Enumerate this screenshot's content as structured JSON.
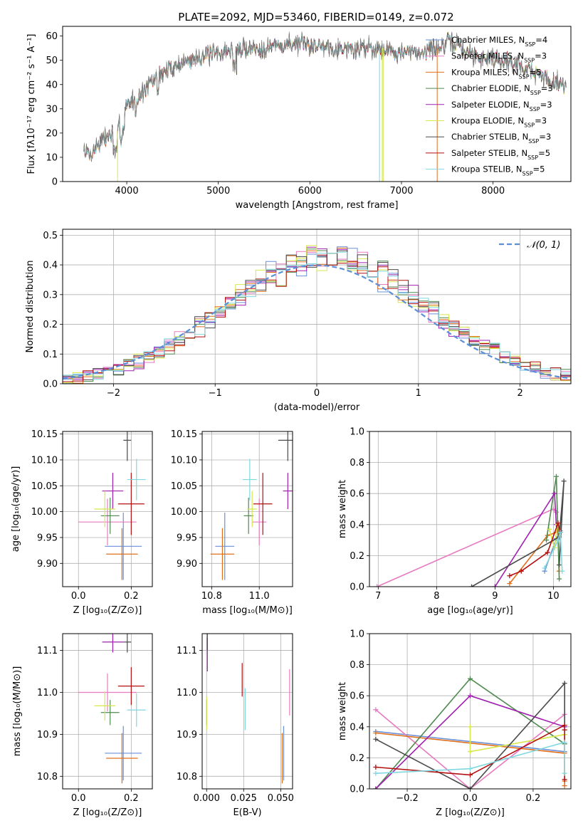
{
  "title": "PLATE=2092, MJD=53460, FIBERID=0149, z=0.072",
  "models": [
    {
      "name": "Chabrier MILES",
      "nssp": "4",
      "color": "#6a8fd8"
    },
    {
      "name": "Salpeter MILES",
      "nssp": "3",
      "color": "#e87ac1"
    },
    {
      "name": "Kroupa MILES",
      "nssp": "5",
      "color": "#e06f1a"
    },
    {
      "name": "Chabrier ELODIE",
      "nssp": "3",
      "color": "#4f8a4f"
    },
    {
      "name": "Salpeter ELODIE",
      "nssp": "3",
      "color": "#a020b0"
    },
    {
      "name": "Kroupa ELODIE",
      "nssp": "3",
      "color": "#d6e84a"
    },
    {
      "name": "Chabrier STELIB",
      "nssp": "3",
      "color": "#4a4a4a"
    },
    {
      "name": "Salpeter STELIB",
      "nssp": "5",
      "color": "#b30f0f"
    },
    {
      "name": "Kroupa STELIB",
      "nssp": "5",
      "color": "#7fd8e0"
    }
  ],
  "chart_data": [
    {
      "type": "line",
      "id": "spectrum",
      "xlabel": "wavelength [Angstrom, rest frame]",
      "ylabel": "Flux [fλ10⁻¹⁷ erg cm⁻² s⁻¹ A⁻¹]",
      "xlim": [
        3300,
        8850
      ],
      "ylim": [
        0,
        64
      ],
      "xticks": [
        4000,
        5000,
        6000,
        7000,
        8000
      ],
      "yticks": [
        0,
        10,
        20,
        30,
        40,
        50,
        60
      ],
      "legend": "top-right",
      "continuum": [
        [
          3530,
          13
        ],
        [
          3600,
          11
        ],
        [
          3700,
          16
        ],
        [
          3800,
          19
        ],
        [
          3900,
          21
        ],
        [
          4000,
          32
        ],
        [
          4100,
          34
        ],
        [
          4200,
          38
        ],
        [
          4300,
          42
        ],
        [
          4400,
          45
        ],
        [
          4500,
          47
        ],
        [
          4600,
          49
        ],
        [
          4700,
          50
        ],
        [
          4800,
          52
        ],
        [
          4900,
          52
        ],
        [
          5000,
          53
        ],
        [
          5100,
          54
        ],
        [
          5200,
          54
        ],
        [
          5300,
          55
        ],
        [
          5400,
          55
        ],
        [
          5500,
          55
        ],
        [
          5600,
          56
        ],
        [
          5700,
          56
        ],
        [
          5800,
          57
        ],
        [
          5900,
          57
        ],
        [
          6000,
          56
        ],
        [
          6100,
          56
        ],
        [
          6200,
          56
        ],
        [
          6300,
          55
        ],
        [
          6400,
          55
        ],
        [
          6500,
          54
        ],
        [
          6600,
          56
        ],
        [
          6700,
          55
        ],
        [
          6800,
          55
        ],
        [
          6900,
          54
        ],
        [
          7000,
          53
        ],
        [
          7100,
          53
        ],
        [
          7200,
          53
        ],
        [
          7300,
          55
        ],
        [
          7400,
          55
        ],
        [
          7500,
          57
        ],
        [
          7600,
          57
        ],
        [
          7700,
          54
        ],
        [
          7800,
          52
        ],
        [
          7900,
          51
        ],
        [
          8000,
          51
        ],
        [
          8100,
          50
        ],
        [
          8200,
          49
        ],
        [
          8300,
          48
        ],
        [
          8400,
          46
        ],
        [
          8500,
          44
        ],
        [
          8600,
          42
        ],
        [
          8700,
          41
        ],
        [
          8800,
          40
        ]
      ]
    },
    {
      "type": "line",
      "id": "residuals",
      "xlabel": "(data-model)/error",
      "ylabel": "Normed distribution",
      "xlim": [
        -2.5,
        2.5
      ],
      "ylim": [
        0,
        0.52
      ],
      "xticks": [
        -2,
        -1,
        0,
        1,
        2
      ],
      "yticks": [
        0.0,
        0.1,
        0.2,
        0.3,
        0.4,
        0.5
      ],
      "legend": "top-right",
      "legend_label": "𝒩(0, 1)",
      "bin_width": 0.1
    },
    {
      "type": "scatter",
      "id": "age-vs-Z",
      "xlabel": "Z [log₁₀(Z/Z⊙)]",
      "ylabel": "age  [log₁₀(age/yr)]",
      "xlim": [
        -0.06,
        0.28
      ],
      "ylim": [
        9.855,
        10.155
      ],
      "xticks": [
        0.0,
        0.2
      ],
      "yticks": [
        9.9,
        9.95,
        10.0,
        10.05,
        10.1,
        10.15
      ],
      "points": [
        {
          "model": 0,
          "x": 0.17,
          "y": 9.933,
          "xerr": 0.07,
          "yerr": 0.065
        },
        {
          "model": 1,
          "x": 0.11,
          "y": 9.98,
          "xerr": 0.11,
          "yerr": 0.045
        },
        {
          "model": 2,
          "x": 0.165,
          "y": 9.918,
          "xerr": 0.06,
          "yerr": 0.05
        },
        {
          "model": 3,
          "x": 0.12,
          "y": 9.992,
          "xerr": 0.035,
          "yerr": 0.035
        },
        {
          "model": 4,
          "x": 0.13,
          "y": 10.04,
          "xerr": 0.04,
          "yerr": 0.035
        },
        {
          "model": 5,
          "x": 0.1,
          "y": 10.005,
          "xerr": 0.04,
          "yerr": 0.035
        },
        {
          "model": 6,
          "x": 0.185,
          "y": 10.138,
          "xerr": 0.015,
          "yerr": 0.04
        },
        {
          "model": 7,
          "x": 0.2,
          "y": 10.015,
          "xerr": 0.05,
          "yerr": 0.06
        },
        {
          "model": 8,
          "x": 0.22,
          "y": 10.062,
          "xerr": 0.035,
          "yerr": 0.04
        }
      ]
    },
    {
      "type": "scatter",
      "id": "age-vs-mass",
      "xlabel": "mass [log₁₀(M/M⊙)]",
      "ylabel": "",
      "xlim": [
        10.76,
        11.14
      ],
      "ylim": [
        9.855,
        10.155
      ],
      "xticks": [
        10.8,
        11.0
      ],
      "yticks": [
        9.9,
        9.95,
        10.0,
        10.05,
        10.1,
        10.15
      ],
      "points": [
        {
          "model": 0,
          "x": 10.855,
          "y": 9.933,
          "xerr": 0.04,
          "yerr": 0.065
        },
        {
          "model": 1,
          "x": 11.0,
          "y": 9.98,
          "xerr": 0.03,
          "yerr": 0.045
        },
        {
          "model": 2,
          "x": 10.845,
          "y": 9.918,
          "xerr": 0.05,
          "yerr": 0.05
        },
        {
          "model": 3,
          "x": 10.955,
          "y": 9.992,
          "xerr": 0.02,
          "yerr": 0.035
        },
        {
          "model": 4,
          "x": 11.12,
          "y": 10.04,
          "xerr": 0.02,
          "yerr": 0.035
        },
        {
          "model": 5,
          "x": 10.97,
          "y": 10.005,
          "xerr": 0.02,
          "yerr": 0.035
        },
        {
          "model": 6,
          "x": 11.12,
          "y": 10.138,
          "xerr": 0.04,
          "yerr": 0.04
        },
        {
          "model": 7,
          "x": 11.015,
          "y": 10.015,
          "xerr": 0.04,
          "yerr": 0.06
        },
        {
          "model": 8,
          "x": 10.96,
          "y": 10.062,
          "xerr": 0.03,
          "yerr": 0.04
        }
      ]
    },
    {
      "type": "line",
      "id": "weight-vs-age",
      "xlabel": "age  [log₁₀(age/yr)]",
      "ylabel": "mass weight",
      "xlim": [
        6.85,
        10.3
      ],
      "ylim": [
        0,
        1.0
      ],
      "xticks": [
        7,
        8,
        9,
        10
      ],
      "yticks": [
        0.0,
        0.2,
        0.4,
        0.6,
        0.8,
        1.0
      ],
      "series": [
        {
          "model": 0,
          "x": [
            9.85,
            10.05,
            10.1,
            10.12
          ],
          "y": [
            0.1,
            0.31,
            0.32,
            0.36
          ]
        },
        {
          "model": 1,
          "x": [
            6.98,
            10.0,
            10.05
          ],
          "y": [
            0.0,
            0.5,
            0.48
          ]
        },
        {
          "model": 2,
          "x": [
            9.25,
            9.9,
            10.05,
            10.08,
            10.1
          ],
          "y": [
            0.02,
            0.33,
            0.35,
            0.37,
            0.1
          ]
        },
        {
          "model": 3,
          "x": [
            9.88,
            10.05,
            10.1
          ],
          "y": [
            0.3,
            0.71,
            0.05
          ]
        },
        {
          "model": 4,
          "x": [
            9.0,
            10.02,
            10.05
          ],
          "y": [
            0.0,
            0.6,
            0.4
          ]
        },
        {
          "model": 5,
          "x": [
            9.93,
            10.02,
            10.07
          ],
          "y": [
            0.37,
            0.25,
            0.4
          ]
        },
        {
          "model": 6,
          "x": [
            8.6,
            10.1,
            10.18,
            10.1
          ],
          "y": [
            0.0,
            0.32,
            0.68,
            0.14
          ]
        },
        {
          "model": 7,
          "x": [
            9.25,
            9.45,
            9.9,
            10.08,
            10.12
          ],
          "y": [
            0.07,
            0.1,
            0.22,
            0.41,
            0.35
          ]
        },
        {
          "model": 8,
          "x": [
            9.85,
            10.08,
            10.12,
            10.15
          ],
          "y": [
            0.12,
            0.3,
            0.35,
            0.1
          ]
        }
      ]
    },
    {
      "type": "scatter",
      "id": "mass-vs-Z",
      "xlabel": "Z [log₁₀(Z/Z⊙)]",
      "ylabel": "mass [log₁₀(M/M⊙)]",
      "xlim": [
        -0.06,
        0.28
      ],
      "ylim": [
        10.77,
        11.14
      ],
      "xticks": [
        0.0,
        0.2
      ],
      "yticks": [
        10.8,
        10.9,
        11.0,
        11.1
      ],
      "points": [
        {
          "model": 0,
          "x": 0.17,
          "y": 10.855,
          "xerr": 0.07,
          "yerr": 0.065
        },
        {
          "model": 1,
          "x": 0.11,
          "y": 11.0,
          "xerr": 0.11,
          "yerr": 0.045
        },
        {
          "model": 2,
          "x": 0.165,
          "y": 10.843,
          "xerr": 0.06,
          "yerr": 0.06
        },
        {
          "model": 3,
          "x": 0.12,
          "y": 10.952,
          "xerr": 0.035,
          "yerr": 0.03
        },
        {
          "model": 4,
          "x": 0.13,
          "y": 11.12,
          "xerr": 0.04,
          "yerr": 0.025
        },
        {
          "model": 5,
          "x": 0.1,
          "y": 10.968,
          "xerr": 0.04,
          "yerr": 0.035
        },
        {
          "model": 6,
          "x": 0.185,
          "y": 11.12,
          "xerr": 0.015,
          "yerr": 0.025
        },
        {
          "model": 7,
          "x": 0.2,
          "y": 11.015,
          "xerr": 0.05,
          "yerr": 0.045
        },
        {
          "model": 8,
          "x": 0.22,
          "y": 10.958,
          "xerr": 0.035,
          "yerr": 0.04
        }
      ]
    },
    {
      "type": "scatter",
      "id": "mass-vs-EBV",
      "xlabel": "E(B-V)",
      "ylabel": "",
      "xlim": [
        -0.003,
        0.058
      ],
      "ylim": [
        10.77,
        11.14
      ],
      "xticks": [
        0.0,
        0.025,
        0.05
      ],
      "yticks": [
        10.8,
        10.9,
        11.0,
        11.1
      ],
      "points": [
        {
          "model": 0,
          "x": 0.052,
          "y": 10.855,
          "xerr": 0,
          "yerr": 0.065
        },
        {
          "model": 1,
          "x": 0.056,
          "y": 11.0,
          "xerr": 0,
          "yerr": 0.055
        },
        {
          "model": 2,
          "x": 0.051,
          "y": 10.843,
          "xerr": 0,
          "yerr": 0.06
        },
        {
          "model": 3,
          "x": 0.0,
          "y": 10.952,
          "xerr": 0,
          "yerr": 0.03
        },
        {
          "model": 4,
          "x": 0.0005,
          "y": 11.09,
          "xerr": 0,
          "yerr": 0.04
        },
        {
          "model": 5,
          "x": 0.0,
          "y": 10.95,
          "xerr": 0,
          "yerr": 0.04
        },
        {
          "model": 6,
          "x": 0.0005,
          "y": 11.12,
          "xerr": 0,
          "yerr": 0.02
        },
        {
          "model": 7,
          "x": 0.024,
          "y": 11.03,
          "xerr": 0,
          "yerr": 0.04
        },
        {
          "model": 8,
          "x": 0.026,
          "y": 10.96,
          "xerr": 0,
          "yerr": 0.05
        }
      ]
    },
    {
      "type": "line",
      "id": "weight-vs-Z",
      "xlabel": "Z [log₁₀(Z/Z⊙)]",
      "ylabel": "mass weight",
      "xlim": [
        -0.32,
        0.32
      ],
      "ylim": [
        0,
        1.0
      ],
      "xticks": [
        -0.2,
        0.0,
        0.2
      ],
      "yticks": [
        0.0,
        0.2,
        0.4,
        0.6,
        0.8,
        1.0
      ],
      "series": [
        {
          "model": 0,
          "x": [
            -0.3,
            0.3,
            0.3
          ],
          "y": [
            0.37,
            0.24,
            0.29
          ]
        },
        {
          "model": 1,
          "x": [
            -0.3,
            0.0,
            0.3
          ],
          "y": [
            0.51,
            0.0,
            0.48
          ]
        },
        {
          "model": 2,
          "x": [
            -0.3,
            0.3,
            0.3,
            0.3,
            0.3
          ],
          "y": [
            0.36,
            0.23,
            0.05,
            0.02,
            0.35
          ]
        },
        {
          "model": 3,
          "x": [
            -0.3,
            0.0,
            0.3
          ],
          "y": [
            0.0,
            0.71,
            0.29
          ]
        },
        {
          "model": 4,
          "x": [
            -0.3,
            0.0,
            0.3
          ],
          "y": [
            0.0,
            0.6,
            0.4
          ]
        },
        {
          "model": 5,
          "x": [
            0.0,
            0.0,
            0.3
          ],
          "y": [
            0.4,
            0.24,
            0.35
          ]
        },
        {
          "model": 6,
          "x": [
            -0.3,
            0.0,
            0.3,
            0.3
          ],
          "y": [
            0.32,
            0.0,
            0.68,
            0.38
          ]
        },
        {
          "model": 7,
          "x": [
            -0.3,
            0.0,
            0.3,
            0.3,
            0.3
          ],
          "y": [
            0.14,
            0.09,
            0.41,
            0.06,
            0.38
          ]
        },
        {
          "model": 8,
          "x": [
            -0.3,
            0.0,
            0.3,
            0.3
          ],
          "y": [
            0.1,
            0.13,
            0.3,
            0.1
          ]
        }
      ]
    }
  ]
}
